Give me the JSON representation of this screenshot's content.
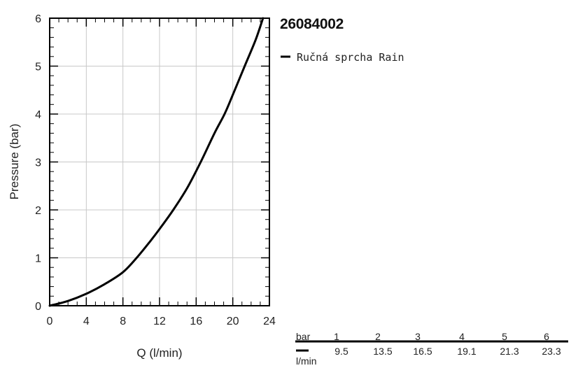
{
  "chart_data": {
    "type": "line",
    "title": "26084002",
    "xlabel": "Q (l/min)",
    "ylabel": "Pressure (bar)",
    "xlim": [
      0,
      24
    ],
    "ylim": [
      0,
      6
    ],
    "x_ticks": [
      "0",
      "4",
      "8",
      "12",
      "16",
      "20",
      "24"
    ],
    "y_ticks": [
      "0",
      "1",
      "2",
      "3",
      "4",
      "5",
      "6"
    ],
    "grid": true,
    "legend_position": "right",
    "series": [
      {
        "name": "Ručná sprcha Rain",
        "color": "#000000",
        "x": [
          0,
          2,
          4,
          6,
          8,
          9.5,
          11,
          12,
          13.5,
          15,
          16.5,
          18,
          19.1,
          20,
          21.3,
          22.5,
          23.3
        ],
        "y": [
          0,
          0.1,
          0.25,
          0.45,
          0.7,
          1.0,
          1.35,
          1.6,
          2.0,
          2.45,
          3.0,
          3.6,
          4.0,
          4.4,
          5.0,
          5.55,
          6.0
        ]
      }
    ]
  },
  "table": {
    "row1_label": "bar",
    "row2_label": "l/min",
    "pressure": [
      "1",
      "2",
      "3",
      "4",
      "5",
      "6"
    ],
    "flow": [
      "9.5",
      "13.5",
      "16.5",
      "19.1",
      "21.3",
      "23.3"
    ]
  }
}
